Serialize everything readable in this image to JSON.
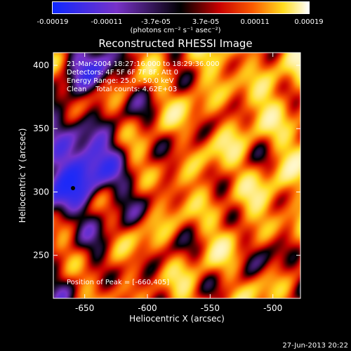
{
  "chart_data": {
    "type": "heatmap",
    "title": "Reconstructed RHESSI Image",
    "xlabel": "Heliocentric X (arcsec)",
    "ylabel": "Heliocentric Y (arcsec)",
    "xlim": [
      -675,
      -478
    ],
    "ylim": [
      216,
      410
    ],
    "x_ticks": [
      -650,
      -600,
      -550,
      -500
    ],
    "y_ticks": [
      250,
      300,
      350,
      400
    ],
    "annotations": {
      "time_range": "21-Mar-2004 18:27:16.000 to 18:29:36.000",
      "detectors": "Detectors: 4F 5F 6F 7F 8F, Att 0",
      "energy_range": "Energy Range: 25.0 - 50.0 keV",
      "clean_counts": "Clean    Total counts: 4.62E+03",
      "peak_position": "Position of Peak = [-660,405]"
    },
    "colorbar": {
      "range": [
        -0.00019,
        0.00019
      ],
      "tick_labels": [
        "-0.00019",
        "-0.00011",
        "-3.7e-05",
        "3.7e-05",
        "0.00011",
        "0.00019"
      ],
      "tick_values": [
        -0.00019,
        -0.00011,
        -3.7e-05,
        3.7e-05,
        0.00011,
        0.00019
      ],
      "unit": "(photons cm⁻² s⁻¹ asec⁻²)"
    },
    "colors": {
      "low": "#1030ff",
      "mid": "#000000",
      "high": "#ffffff"
    },
    "grid": false
  },
  "footer": {
    "timestamp": "27-Jun-2013 20:22"
  }
}
